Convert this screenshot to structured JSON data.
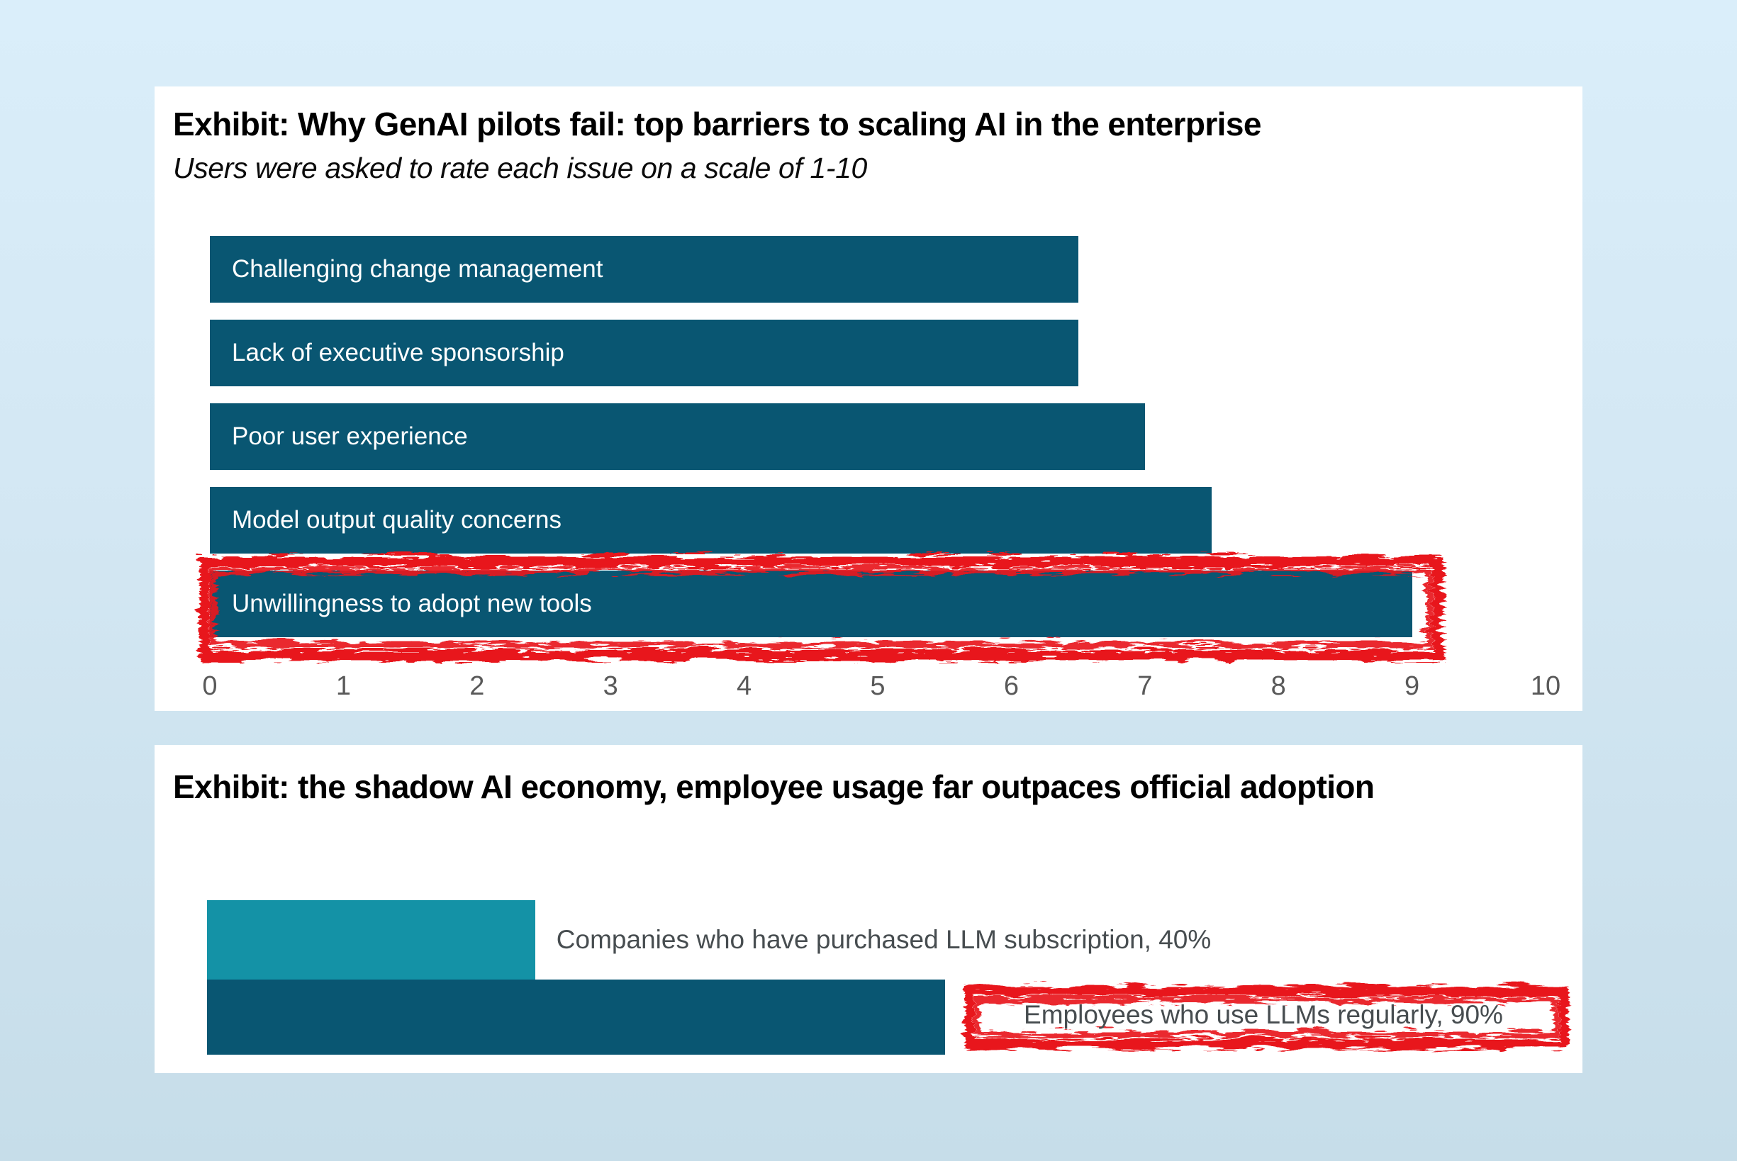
{
  "colors": {
    "bar_dark": "#095672",
    "bar_light": "#1492a6",
    "highlight_red": "#e8131c",
    "axis_gray": "#595959",
    "label_gray": "#474d50",
    "panel_white": "#ffffff",
    "background_top": "#daeefa",
    "background_bottom": "#c6dde9"
  },
  "chart_data": [
    {
      "type": "bar",
      "orientation": "horizontal",
      "title": "Exhibit: Why GenAI pilots fail: top barriers to scaling AI in the enterprise",
      "subtitle": "Users were asked to rate each issue on a scale of 1-10",
      "categories": [
        "Challenging change management",
        "Lack of executive sponsorship",
        "Poor user experience",
        "Model output quality concerns",
        "Unwillingness to adopt new tools"
      ],
      "values": [
        6.5,
        6.5,
        7,
        7.5,
        9
      ],
      "xlim": [
        0,
        10
      ],
      "x_ticks": [
        0,
        1,
        2,
        3,
        4,
        5,
        6,
        7,
        8,
        9,
        10
      ],
      "bar_color": "#095672",
      "label_position": "inside-left",
      "grid": false,
      "legend": false,
      "highlighted_category": "Unwillingness to adopt new tools",
      "highlight_style": "red-crayon-frame"
    },
    {
      "type": "bar",
      "orientation": "horizontal",
      "title": "Exhibit: the shadow AI economy, employee usage far outpaces official adoption",
      "categories": [
        "Companies who have purchased LLM subscription",
        "Employees who use LLMs regularly"
      ],
      "values": [
        40,
        90
      ],
      "value_unit": "%",
      "labels": [
        "Companies who have purchased LLM subscription, 40%",
        "Employees who use LLMs regularly, 90%"
      ],
      "series_colors": [
        "#1492a6",
        "#095672"
      ],
      "xlim": [
        0,
        100
      ],
      "grid": false,
      "legend": false,
      "axis_visible": false,
      "highlighted_category": "Employees who use LLMs regularly",
      "highlight_style": "red-crayon-frame"
    }
  ]
}
